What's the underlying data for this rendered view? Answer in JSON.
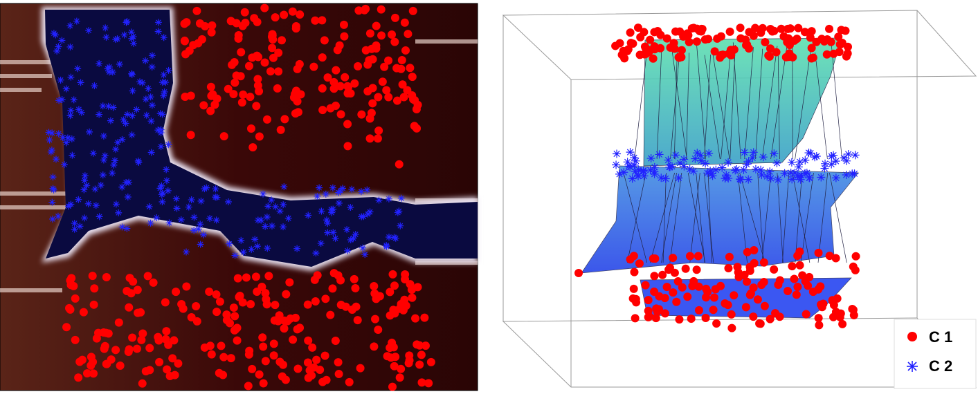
{
  "legend": [
    {
      "label": "C 1"
    },
    {
      "label": "C 2"
    }
  ]
}
